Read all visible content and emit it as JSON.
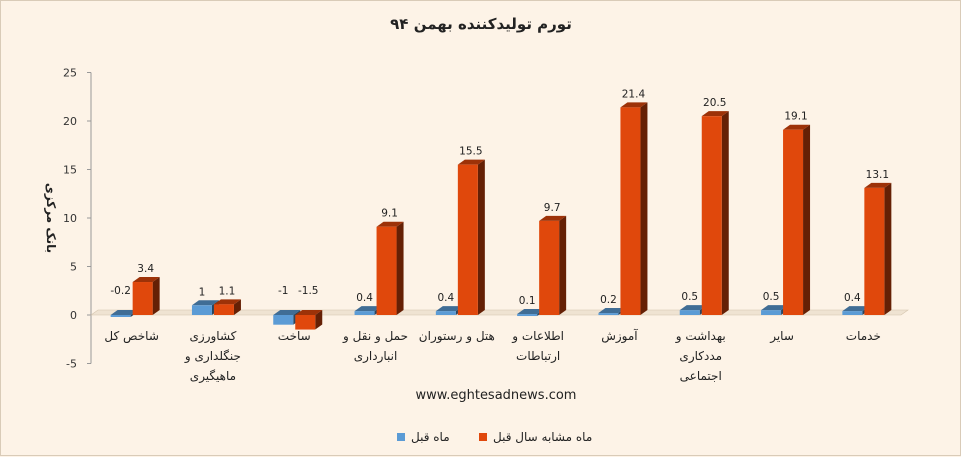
{
  "chart_data": {
    "type": "bar",
    "title": "تورم تولیدکننده بهمن ۹۴",
    "ylabel": "بانک مرکزی",
    "xlabel": "",
    "watermark": "www.eghtesadnews.com",
    "ylim": [
      -5,
      25
    ],
    "yticks": [
      -5,
      0,
      5,
      10,
      15,
      20,
      25
    ],
    "grid": false,
    "legend_position": "bottom",
    "categories": [
      [
        "شاخص کل"
      ],
      [
        "کشاورزی",
        "جنگلداری و",
        "ماهیگیری"
      ],
      [
        "ساخت"
      ],
      [
        "حمل و نقل و",
        "انبارداری"
      ],
      [
        "هتل و رستوران"
      ],
      [
        "اطلاعات و",
        "ارتباطات"
      ],
      [
        "آموزش"
      ],
      [
        "بهداشت و",
        "مددکاری",
        "اجتماعی"
      ],
      [
        "سایر"
      ],
      [
        "خدمات"
      ]
    ],
    "series": [
      {
        "name": "ماه قبل",
        "color": "#5b9bd5",
        "values": [
          -0.2,
          1,
          -1,
          0.4,
          0.4,
          0.1,
          0.2,
          0.5,
          0.5,
          0.4
        ]
      },
      {
        "name": "ماه مشابه سال قبل",
        "color": "#e0480c",
        "values": [
          3.4,
          1.1,
          -1.5,
          9.1,
          15.5,
          9.7,
          21.4,
          20.5,
          19.1,
          13.1
        ]
      }
    ]
  }
}
